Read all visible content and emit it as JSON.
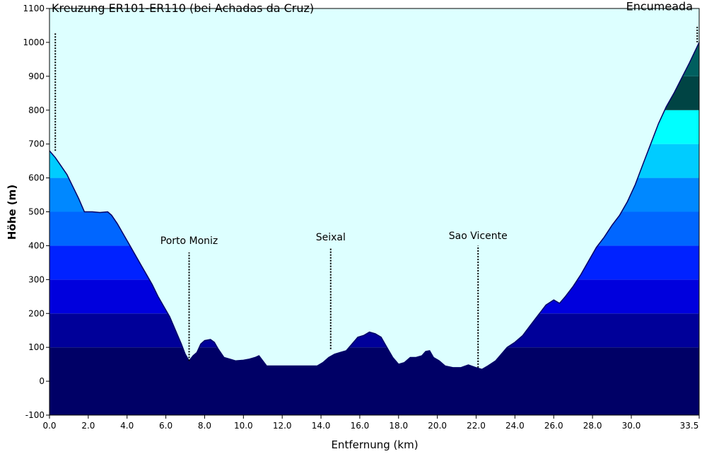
{
  "chart_data": {
    "type": "area",
    "xlabel": "Entfernung   (km)",
    "ylabel": "Höhe (m)",
    "xlim": [
      0,
      33.5
    ],
    "ylim": [
      -100,
      1100
    ],
    "y_ticks": [
      -100,
      0,
      100,
      200,
      300,
      400,
      500,
      600,
      700,
      800,
      900,
      1000,
      1100
    ],
    "x_ticks": [
      "0.0",
      "2.0",
      "4.0",
      "6.0",
      "8.0",
      "10.0",
      "12.0",
      "14.0",
      "16.0",
      "18.0",
      "20.0",
      "22.0",
      "24.0",
      "26.0",
      "28.0",
      "30.0",
      "33.5"
    ],
    "x_tick_values": [
      0,
      2,
      4,
      6,
      8,
      10,
      12,
      14,
      16,
      18,
      20,
      22,
      24,
      26,
      28,
      30,
      33.5
    ],
    "grid": false,
    "background_color": "#ddffff",
    "elevation_bands": [
      {
        "from": -100,
        "to": 100,
        "color": "#000066"
      },
      {
        "from": 100,
        "to": 200,
        "color": "#000099"
      },
      {
        "from": 200,
        "to": 300,
        "color": "#0000dd"
      },
      {
        "from": 300,
        "to": 400,
        "color": "#0022ff"
      },
      {
        "from": 400,
        "to": 500,
        "color": "#0066ff"
      },
      {
        "from": 500,
        "to": 600,
        "color": "#0088ff"
      },
      {
        "from": 600,
        "to": 700,
        "color": "#00ccff"
      },
      {
        "from": 700,
        "to": 800,
        "color": "#00ffff"
      },
      {
        "from": 800,
        "to": 900,
        "color": "#004444"
      },
      {
        "from": 900,
        "to": 1000,
        "color": "#005f5f"
      },
      {
        "from": 1000,
        "to": 1100,
        "color": "#008080"
      }
    ],
    "profile_color": "#000066",
    "profile": [
      [
        0.0,
        680
      ],
      [
        0.3,
        660
      ],
      [
        0.6,
        635
      ],
      [
        0.9,
        610
      ],
      [
        1.2,
        575
      ],
      [
        1.5,
        540
      ],
      [
        1.8,
        500
      ],
      [
        2.2,
        500
      ],
      [
        2.6,
        498
      ],
      [
        3.0,
        500
      ],
      [
        3.2,
        490
      ],
      [
        3.5,
        465
      ],
      [
        3.8,
        435
      ],
      [
        4.1,
        405
      ],
      [
        4.4,
        375
      ],
      [
        4.7,
        345
      ],
      [
        5.0,
        315
      ],
      [
        5.3,
        285
      ],
      [
        5.6,
        250
      ],
      [
        5.9,
        220
      ],
      [
        6.2,
        190
      ],
      [
        6.5,
        150
      ],
      [
        6.8,
        110
      ],
      [
        7.0,
        80
      ],
      [
        7.2,
        60
      ],
      [
        7.4,
        75
      ],
      [
        7.6,
        85
      ],
      [
        7.8,
        110
      ],
      [
        8.0,
        120
      ],
      [
        8.3,
        123
      ],
      [
        8.5,
        115
      ],
      [
        8.7,
        95
      ],
      [
        9.0,
        70
      ],
      [
        9.3,
        65
      ],
      [
        9.6,
        60
      ],
      [
        10.0,
        62
      ],
      [
        10.3,
        65
      ],
      [
        10.6,
        70
      ],
      [
        10.8,
        75
      ],
      [
        11.0,
        60
      ],
      [
        11.2,
        45
      ],
      [
        11.8,
        45
      ],
      [
        12.5,
        45
      ],
      [
        13.3,
        45
      ],
      [
        13.8,
        45
      ],
      [
        14.1,
        55
      ],
      [
        14.4,
        70
      ],
      [
        14.7,
        80
      ],
      [
        15.0,
        85
      ],
      [
        15.3,
        90
      ],
      [
        15.6,
        110
      ],
      [
        15.9,
        130
      ],
      [
        16.2,
        135
      ],
      [
        16.5,
        145
      ],
      [
        16.8,
        140
      ],
      [
        17.1,
        130
      ],
      [
        17.4,
        100
      ],
      [
        17.7,
        70
      ],
      [
        18.0,
        50
      ],
      [
        18.3,
        55
      ],
      [
        18.6,
        70
      ],
      [
        18.9,
        70
      ],
      [
        19.2,
        75
      ],
      [
        19.4,
        88
      ],
      [
        19.6,
        90
      ],
      [
        19.8,
        70
      ],
      [
        20.1,
        60
      ],
      [
        20.4,
        45
      ],
      [
        20.8,
        40
      ],
      [
        21.2,
        40
      ],
      [
        21.6,
        48
      ],
      [
        22.0,
        40
      ],
      [
        22.3,
        35
      ],
      [
        22.6,
        45
      ],
      [
        23.0,
        60
      ],
      [
        23.3,
        80
      ],
      [
        23.6,
        100
      ],
      [
        24.0,
        115
      ],
      [
        24.4,
        135
      ],
      [
        24.8,
        165
      ],
      [
        25.2,
        195
      ],
      [
        25.6,
        225
      ],
      [
        26.0,
        240
      ],
      [
        26.3,
        230
      ],
      [
        26.6,
        250
      ],
      [
        27.0,
        280
      ],
      [
        27.4,
        315
      ],
      [
        27.8,
        355
      ],
      [
        28.2,
        395
      ],
      [
        28.6,
        425
      ],
      [
        29.0,
        460
      ],
      [
        29.4,
        490
      ],
      [
        29.8,
        530
      ],
      [
        30.2,
        580
      ],
      [
        30.6,
        640
      ],
      [
        31.0,
        700
      ],
      [
        31.4,
        760
      ],
      [
        31.8,
        810
      ],
      [
        32.2,
        850
      ],
      [
        32.6,
        895
      ],
      [
        33.0,
        940
      ],
      [
        33.5,
        1000
      ]
    ],
    "waypoints": [
      {
        "name": "Kreuzung ER101-ER110 (bei Achadas da Cruz)",
        "x": 0.3,
        "line_from": 680,
        "line_to": 1030,
        "label_y": 1090
      },
      {
        "name": "Porto Moniz",
        "x": 7.2,
        "line_from": 60,
        "line_to": 380,
        "label_y": 405
      },
      {
        "name": "Seixal",
        "x": 14.5,
        "line_from": 95,
        "line_to": 395,
        "label_y": 415
      },
      {
        "name": "Sao Vicente",
        "x": 22.1,
        "line_from": 40,
        "line_to": 400,
        "label_y": 420
      },
      {
        "name": "Encumeada",
        "x": 33.4,
        "line_from": 1000,
        "line_to": 1050,
        "label_y": 1095
      }
    ]
  }
}
